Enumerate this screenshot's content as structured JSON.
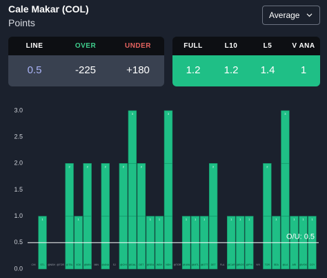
{
  "header": {
    "title": "Cale Makar (COL)",
    "subtitle": "Points",
    "dropdown": "Average"
  },
  "line_card": {
    "headers": [
      "LINE",
      "OVER",
      "UNDER"
    ],
    "values": [
      "0.5",
      "-225",
      "+180"
    ]
  },
  "stats_card": {
    "headers": [
      "FULL",
      "L10",
      "L5",
      "V ANA"
    ],
    "values": [
      "1.2",
      "1.2",
      "1.4",
      "1"
    ]
  },
  "chart_data": {
    "type": "bar",
    "categories": [
      "CHI",
      "STL",
      "@NSH",
      "@TOR",
      "@TBL",
      "VGK",
      "@MIN",
      "MIN",
      "@ANA",
      "SJ",
      "@CHI",
      "@DAL",
      "DET",
      "@SEA",
      "WSH",
      "NSH",
      "@TOR",
      "@VAN",
      "@MTL",
      "@OTT",
      "DET",
      "FLA",
      "@CAR",
      "@BOS",
      "@PHI",
      "NYI",
      "TOR",
      "SEA",
      "@LA",
      "ARI",
      "@VGK",
      "CGY"
    ],
    "values": [
      0,
      1,
      0,
      0,
      2,
      1,
      2,
      0,
      2,
      0,
      2,
      3,
      2,
      1,
      1,
      3,
      0,
      1,
      1,
      1,
      2,
      0,
      1,
      1,
      1,
      0,
      2,
      1,
      3,
      1,
      1,
      1
    ],
    "color": "#1fbf86",
    "ylim": [
      0,
      3
    ],
    "yticks": [
      {
        "value": 0,
        "label": "0.0"
      },
      {
        "value": 0.5,
        "label": "0.5"
      },
      {
        "value": 1,
        "label": "1.0"
      },
      {
        "value": 1.5,
        "label": "1.5"
      },
      {
        "value": 2,
        "label": "2.0"
      },
      {
        "value": 2.5,
        "label": "2.5"
      },
      {
        "value": 3,
        "label": "3.0"
      }
    ],
    "grid": false,
    "line": 0.5,
    "line_label": "O/U: 0.5"
  }
}
